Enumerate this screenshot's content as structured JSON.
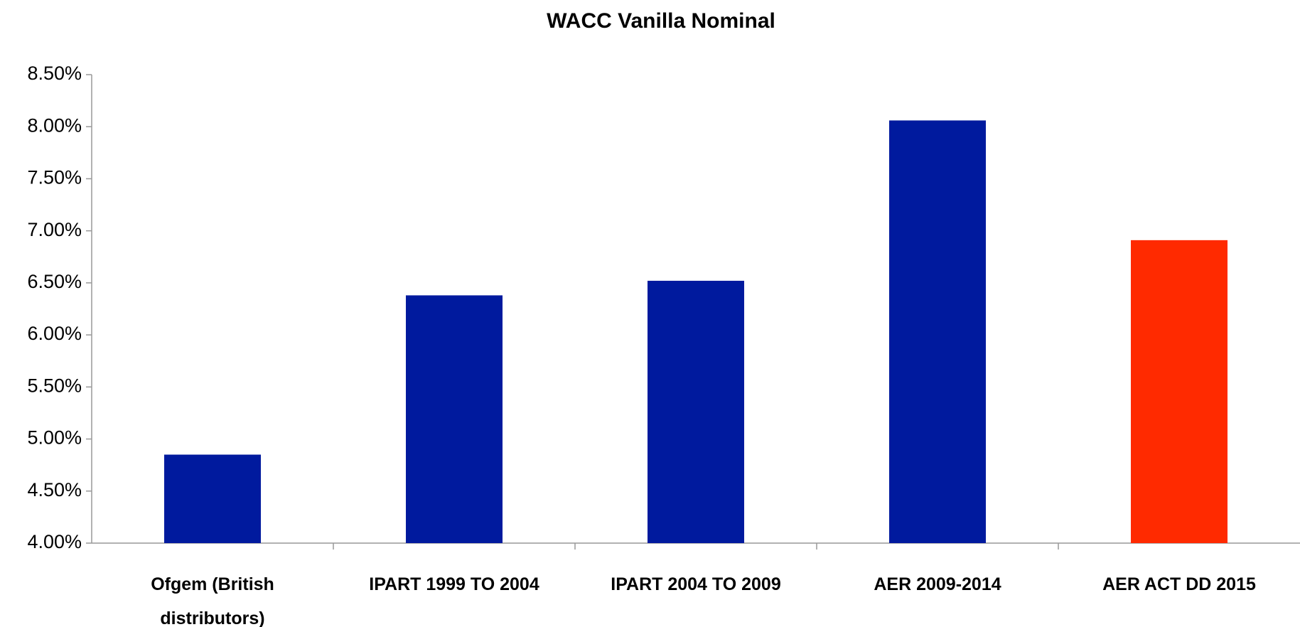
{
  "chart_data": {
    "type": "bar",
    "title": "WACC Vanilla Nominal",
    "categories": [
      "Ofgem (British distributors)",
      "IPART 1999 TO 2004",
      "IPART 2004 TO 2009",
      "AER 2009-2014",
      "AER ACT DD 2015"
    ],
    "values": [
      4.85,
      6.38,
      6.52,
      8.06,
      6.91
    ],
    "colors": [
      "#001a9e",
      "#001a9e",
      "#001a9e",
      "#001a9e",
      "#ff2a00"
    ],
    "ylim": [
      4.0,
      8.5
    ],
    "yticks": [
      {
        "value": 4.0,
        "label": "4.00%"
      },
      {
        "value": 4.5,
        "label": "4.50%"
      },
      {
        "value": 5.0,
        "label": "5.00%"
      },
      {
        "value": 5.5,
        "label": "5.50%"
      },
      {
        "value": 6.0,
        "label": "6.00%"
      },
      {
        "value": 6.5,
        "label": "6.50%"
      },
      {
        "value": 7.0,
        "label": "7.00%"
      },
      {
        "value": 7.5,
        "label": "7.50%"
      },
      {
        "value": 8.0,
        "label": "8.00%"
      },
      {
        "value": 8.5,
        "label": "8.50%"
      }
    ],
    "grid": false
  }
}
